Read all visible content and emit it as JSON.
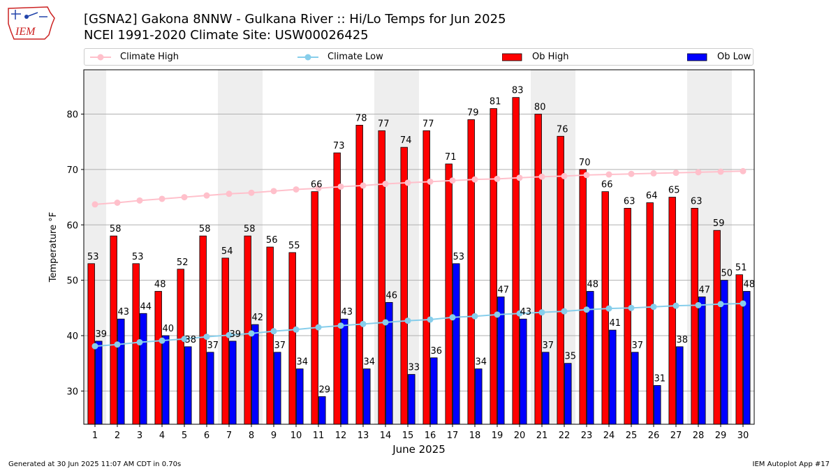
{
  "header": {
    "title_line1": "[GSNA2] Gakona 8NNW - Gulkana River :: Hi/Lo Temps for Jun 2025",
    "title_line2": "NCEI 1991-2020 Climate Site: USW00026425",
    "logo_text": "IEM"
  },
  "footer": {
    "generated": "Generated at 30 Jun 2025 11:07 AM CDT in 0.70s",
    "app": "IEM Autoplot App #17"
  },
  "chart_data": {
    "type": "bar",
    "xlabel": "June 2025",
    "ylabel": "Temperature °F",
    "ylim": [
      24,
      88
    ],
    "yticks": [
      30,
      40,
      50,
      60,
      70,
      80
    ],
    "grid": true,
    "legend_position": "top",
    "categories": [
      "1",
      "2",
      "3",
      "4",
      "5",
      "6",
      "7",
      "8",
      "9",
      "10",
      "11",
      "12",
      "13",
      "14",
      "15",
      "16",
      "17",
      "18",
      "19",
      "20",
      "21",
      "22",
      "23",
      "24",
      "25",
      "26",
      "27",
      "28",
      "29",
      "30"
    ],
    "weekend_days": [
      1,
      7,
      8,
      14,
      15,
      21,
      22,
      28,
      29
    ],
    "series": [
      {
        "name": "Ob High",
        "kind": "bar",
        "color": "#ff0000",
        "values": [
          53,
          58,
          53,
          48,
          52,
          58,
          54,
          58,
          56,
          55,
          66,
          73,
          78,
          77,
          74,
          77,
          71,
          79,
          81,
          83,
          80,
          76,
          70,
          66,
          63,
          64,
          65,
          63,
          59,
          51
        ]
      },
      {
        "name": "Ob Low",
        "kind": "bar",
        "color": "#0000ff",
        "values": [
          39,
          43,
          44,
          40,
          38,
          37,
          39,
          42,
          37,
          34,
          29,
          43,
          34,
          46,
          33,
          36,
          53,
          34,
          47,
          43,
          37,
          35,
          48,
          41,
          37,
          31,
          38,
          47,
          50,
          48
        ]
      },
      {
        "name": "Climate High",
        "kind": "line",
        "color": "#ffc0cb",
        "values": [
          63.7,
          64.0,
          64.4,
          64.7,
          65.0,
          65.3,
          65.6,
          65.8,
          66.1,
          66.4,
          66.6,
          66.9,
          67.1,
          67.4,
          67.6,
          67.8,
          68.0,
          68.2,
          68.3,
          68.5,
          68.7,
          68.8,
          69.0,
          69.1,
          69.2,
          69.3,
          69.4,
          69.5,
          69.6,
          69.7
        ]
      },
      {
        "name": "Climate Low",
        "kind": "line",
        "color": "#87ceeb",
        "values": [
          38.1,
          38.4,
          38.8,
          39.1,
          39.4,
          39.8,
          40.1,
          40.4,
          40.8,
          41.1,
          41.5,
          41.8,
          42.1,
          42.4,
          42.7,
          42.9,
          43.3,
          43.5,
          43.8,
          44.0,
          44.2,
          44.4,
          44.7,
          44.9,
          45.0,
          45.2,
          45.4,
          45.5,
          45.7,
          45.8
        ]
      }
    ]
  }
}
